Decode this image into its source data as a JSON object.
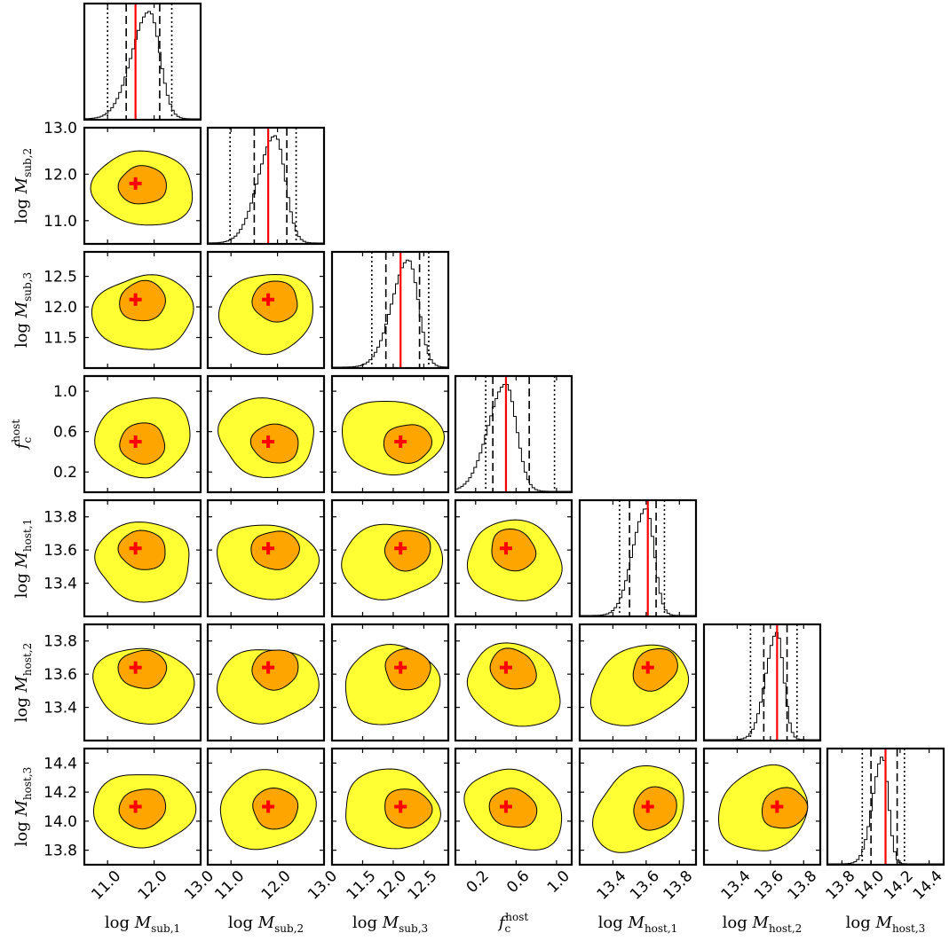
{
  "chart_data": {
    "type": "corner",
    "params": [
      {
        "label": "log M",
        "sub": "sub,1",
        "range": [
          10.5,
          13.0
        ],
        "ticks": [
          "11.0",
          "12.0",
          "13.0"
        ],
        "tick_values": [
          11.0,
          12.0,
          13.0
        ],
        "truth": 11.6,
        "mode": 11.9,
        "quantiles_dashed": [
          11.4,
          12.12
        ],
        "quantiles_dotted": [
          11.0,
          12.38
        ],
        "peak_sigma": 0.28
      },
      {
        "label": "log M",
        "sub": "sub,2",
        "range": [
          10.5,
          13.0
        ],
        "ticks": [
          "11.0",
          "12.0",
          "13.0"
        ],
        "tick_values": [
          11.0,
          12.0,
          13.0
        ],
        "truth": 11.8,
        "mode": 11.95,
        "quantiles_dashed": [
          11.5,
          12.2
        ],
        "quantiles_dotted": [
          10.98,
          12.4
        ],
        "peak_sigma": 0.27
      },
      {
        "label": "log M",
        "sub": "sub,3",
        "range": [
          11.0,
          12.9
        ],
        "ticks": [
          "11.5",
          "12.0",
          "12.5"
        ],
        "tick_values": [
          11.5,
          12.0,
          12.5
        ],
        "truth": 12.12,
        "mode": 12.25,
        "quantiles_dashed": [
          11.88,
          12.43
        ],
        "quantiles_dotted": [
          11.65,
          12.58
        ],
        "peak_sigma": 0.2
      },
      {
        "label": "f",
        "sub": "c",
        "sup": "host",
        "range": [
          0.0,
          1.15
        ],
        "ticks": [
          "0.2",
          "0.6",
          "1.0"
        ],
        "tick_values": [
          0.2,
          0.6,
          1.0
        ],
        "truth": 0.5,
        "mode": 0.5,
        "quantiles_dashed": [
          0.37,
          0.73
        ],
        "quantiles_dotted": [
          0.3,
          0.98
        ],
        "peak_sigma": 0.13
      },
      {
        "label": "log M",
        "sub": "host,1",
        "range": [
          13.2,
          13.9
        ],
        "ticks": [
          "13.4",
          "13.6",
          "13.8"
        ],
        "tick_values": [
          13.4,
          13.6,
          13.8
        ],
        "truth": 13.61,
        "mode": 13.6,
        "quantiles_dashed": [
          13.5,
          13.66
        ],
        "quantiles_dotted": [
          13.44,
          13.71
        ],
        "peak_sigma": 0.06
      },
      {
        "label": "log M",
        "sub": "host,2",
        "range": [
          13.2,
          13.9
        ],
        "ticks": [
          "13.4",
          "13.6",
          "13.8"
        ],
        "tick_values": [
          13.4,
          13.6,
          13.8
        ],
        "truth": 13.64,
        "mode": 13.64,
        "quantiles_dashed": [
          13.56,
          13.7
        ],
        "quantiles_dotted": [
          13.48,
          13.76
        ],
        "peak_sigma": 0.05
      },
      {
        "label": "log M",
        "sub": "host,3",
        "range": [
          13.7,
          14.5
        ],
        "ticks": [
          "13.8",
          "14.0",
          "14.2",
          "14.4"
        ],
        "tick_values": [
          13.8,
          14.0,
          14.2,
          14.4
        ],
        "truth": 14.1,
        "mode": 14.08,
        "quantiles_dashed": [
          14.0,
          14.18
        ],
        "quantiles_dotted": [
          13.94,
          14.23
        ],
        "peak_sigma": 0.05
      }
    ],
    "colors": {
      "inner": "#ffa500",
      "outer": "#ffff33",
      "truth": "#ff0000",
      "hist": "#000000"
    },
    "contour_levels": [
      "1 sigma",
      "2 sigma"
    ],
    "grid": false,
    "legend": "none"
  }
}
